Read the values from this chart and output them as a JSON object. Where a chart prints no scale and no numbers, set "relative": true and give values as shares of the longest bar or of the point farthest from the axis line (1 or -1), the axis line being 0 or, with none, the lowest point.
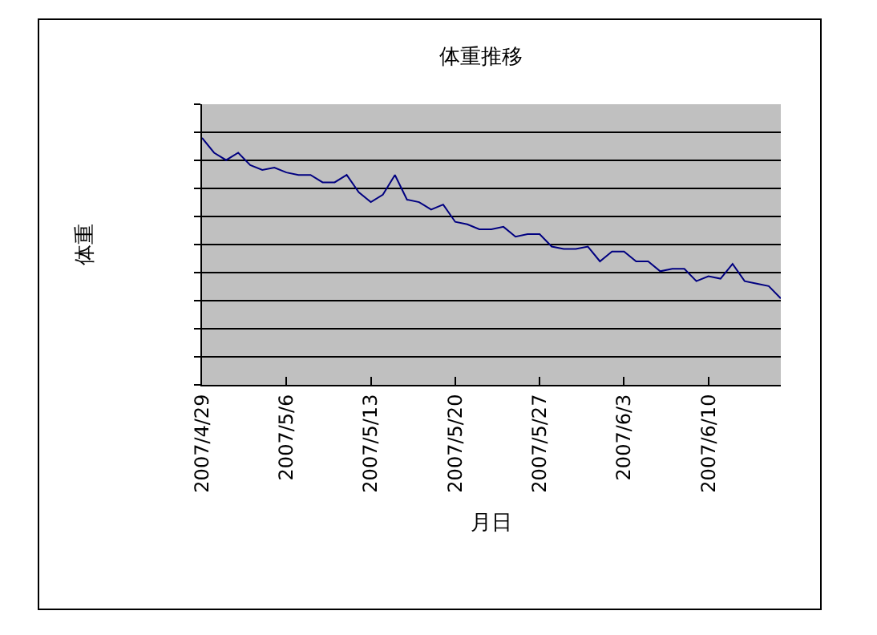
{
  "chart_data": {
    "type": "line",
    "title": "体重推移",
    "xlabel": "月日",
    "ylabel": "体重",
    "relative": true,
    "x": [
      "2007-04-29",
      "2007-04-30",
      "2007-05-01",
      "2007-05-02",
      "2007-05-03",
      "2007-05-04",
      "2007-05-05",
      "2007-05-06",
      "2007-05-07",
      "2007-05-08",
      "2007-05-09",
      "2007-05-10",
      "2007-05-11",
      "2007-05-12",
      "2007-05-13",
      "2007-05-14",
      "2007-05-15",
      "2007-05-16",
      "2007-05-17",
      "2007-05-18",
      "2007-05-19",
      "2007-05-20",
      "2007-05-21",
      "2007-05-22",
      "2007-05-23",
      "2007-05-24",
      "2007-05-25",
      "2007-05-26",
      "2007-05-27",
      "2007-05-28",
      "2007-05-29",
      "2007-05-30",
      "2007-05-31",
      "2007-06-01",
      "2007-06-02",
      "2007-06-03",
      "2007-06-04",
      "2007-06-05",
      "2007-06-06",
      "2007-06-07",
      "2007-06-08",
      "2007-06-09",
      "2007-06-10",
      "2007-06-11",
      "2007-06-12",
      "2007-06-13",
      "2007-06-14",
      "2007-06-15",
      "2007-06-16"
    ],
    "series": [
      {
        "color": "#000080",
        "values": [
          1,
          0.94,
          0.91,
          0.94,
          0.89,
          0.87,
          0.88,
          0.86,
          0.85,
          0.85,
          0.82,
          0.82,
          0.85,
          0.78,
          0.74,
          0.77,
          0.85,
          0.75,
          0.74,
          0.71,
          0.73,
          0.66,
          0.65,
          0.63,
          0.63,
          0.64,
          0.6,
          0.61,
          0.61,
          0.56,
          0.55,
          0.55,
          0.56,
          0.5,
          0.54,
          0.54,
          0.5,
          0.5,
          0.46,
          0.47,
          0.47,
          0.42,
          0.44,
          0.43,
          0.49,
          0.42,
          0.41,
          0.4,
          0.35
        ]
      }
    ],
    "xlim": [
      "2007-04-29",
      "2007-06-16"
    ],
    "xticks": [
      {
        "value": "2007-04-29",
        "label": "2007/4/29"
      },
      {
        "value": "2007-05-06",
        "label": "2007/5/6"
      },
      {
        "value": "2007-05-13",
        "label": "2007/5/13"
      },
      {
        "value": "2007-05-20",
        "label": "2007/5/20"
      },
      {
        "value": "2007-05-27",
        "label": "2007/5/27"
      },
      {
        "value": "2007-06-03",
        "label": "2007/6/3"
      },
      {
        "value": "2007-06-10",
        "label": "2007/6/10"
      }
    ],
    "tick_labels": "x",
    "grid": "y",
    "marker": "none",
    "line_style": "solid"
  }
}
